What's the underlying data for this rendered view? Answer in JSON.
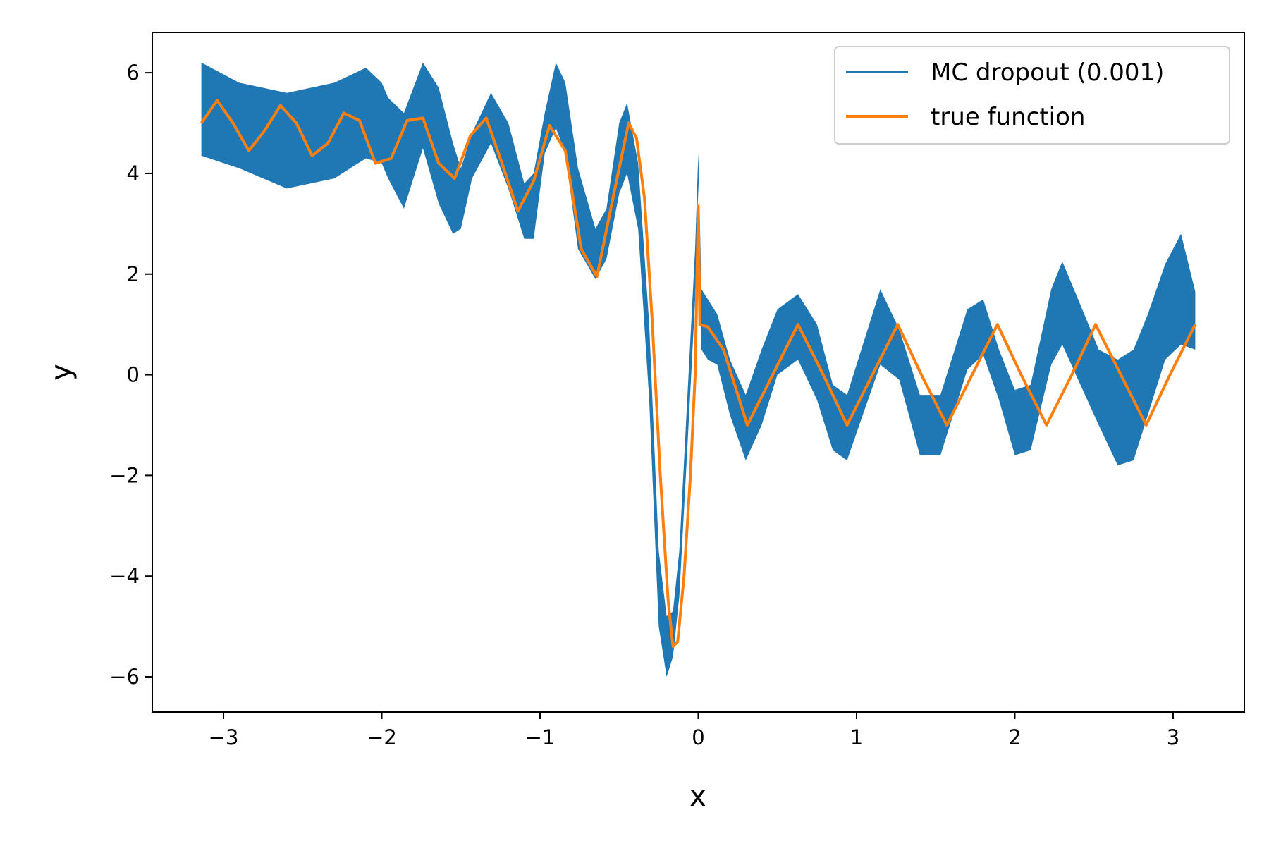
{
  "chart_data": {
    "type": "line",
    "title": "",
    "xlabel": "x",
    "ylabel": "y",
    "xlim": [
      -3.45,
      3.45
    ],
    "ylim": [
      -6.7,
      6.8
    ],
    "xticks": [
      -3,
      -2,
      -1,
      0,
      1,
      2,
      3
    ],
    "xtick_labels": [
      "−3",
      "−2",
      "−1",
      "0",
      "1",
      "2",
      "3"
    ],
    "yticks": [
      -6,
      -4,
      -2,
      0,
      2,
      4,
      6
    ],
    "ytick_labels": [
      "−6",
      "−4",
      "−2",
      "0",
      "2",
      "4",
      "6"
    ],
    "grid": false,
    "legend": {
      "position": "top-right",
      "entries": [
        {
          "label": "MC dropout (0.001)",
          "color": "#1f77b4"
        },
        {
          "label": "true function",
          "color": "#ff7f0e"
        }
      ]
    },
    "series": [
      {
        "name": "MC dropout (0.001)",
        "kind": "band",
        "color": "#1f77b4",
        "x": [
          -3.14,
          -2.9,
          -2.6,
          -2.3,
          -2.1,
          -2.0,
          -1.96,
          -1.86,
          -1.74,
          -1.64,
          -1.55,
          -1.5,
          -1.43,
          -1.31,
          -1.2,
          -1.1,
          -1.04,
          -0.97,
          -0.9,
          -0.84,
          -0.76,
          -0.65,
          -0.58,
          -0.5,
          -0.45,
          -0.38,
          -0.31,
          -0.25,
          -0.2,
          -0.16,
          -0.12,
          -0.07,
          -0.02,
          0.0,
          0.02,
          0.06,
          0.12,
          0.2,
          0.3,
          0.4,
          0.5,
          0.63,
          0.75,
          0.85,
          0.94,
          1.05,
          1.15,
          1.27,
          1.4,
          1.53,
          1.6,
          1.7,
          1.8,
          1.9,
          2.0,
          2.1,
          2.23,
          2.3,
          2.4,
          2.53,
          2.65,
          2.75,
          2.84,
          2.95,
          3.05,
          3.14
        ],
        "upper": [
          6.2,
          5.8,
          5.6,
          5.8,
          6.1,
          5.8,
          5.5,
          5.2,
          6.2,
          5.7,
          4.6,
          4.1,
          4.8,
          5.6,
          5.0,
          3.8,
          4.0,
          5.2,
          6.2,
          5.8,
          4.1,
          2.9,
          3.3,
          5.0,
          5.4,
          4.2,
          1.0,
          -3.5,
          -4.8,
          -4.7,
          -3.5,
          -0.5,
          2.5,
          4.4,
          1.7,
          1.5,
          1.2,
          0.3,
          -0.4,
          0.5,
          1.3,
          1.6,
          1.0,
          -0.2,
          -0.4,
          0.7,
          1.7,
          0.9,
          -0.4,
          -0.4,
          0.3,
          1.3,
          1.5,
          0.5,
          -0.3,
          -0.2,
          1.7,
          2.25,
          1.5,
          0.5,
          0.3,
          0.5,
          1.2,
          2.2,
          2.8,
          1.65
        ],
        "lower": [
          4.35,
          4.1,
          3.7,
          3.9,
          4.3,
          4.2,
          3.9,
          3.3,
          4.5,
          3.4,
          2.8,
          2.9,
          3.9,
          4.6,
          3.7,
          2.7,
          2.7,
          4.4,
          4.9,
          4.4,
          2.5,
          1.9,
          2.3,
          3.6,
          4.0,
          2.9,
          -0.5,
          -5.0,
          -6.0,
          -5.6,
          -4.4,
          -1.5,
          1.5,
          3.8,
          0.5,
          0.3,
          0.2,
          -0.8,
          -1.7,
          -1.0,
          0.0,
          0.3,
          -0.5,
          -1.5,
          -1.7,
          -0.7,
          0.2,
          -0.1,
          -1.6,
          -1.6,
          -0.9,
          0.1,
          0.4,
          -0.5,
          -1.6,
          -1.5,
          0.2,
          0.6,
          -0.1,
          -1.0,
          -1.8,
          -1.7,
          -0.8,
          0.3,
          0.6,
          0.5
        ]
      },
      {
        "name": "true function",
        "kind": "line",
        "color": "#ff7f0e",
        "x": [
          -3.14,
          -3.04,
          -2.94,
          -2.84,
          -2.74,
          -2.64,
          -2.54,
          -2.44,
          -2.34,
          -2.24,
          -2.14,
          -2.04,
          -1.94,
          -1.84,
          -1.74,
          -1.64,
          -1.54,
          -1.44,
          -1.34,
          -1.24,
          -1.14,
          -1.04,
          -0.94,
          -0.84,
          -0.74,
          -0.64,
          -0.54,
          -0.44,
          -0.39,
          -0.34,
          -0.29,
          -0.24,
          -0.19,
          -0.16,
          -0.13,
          -0.09,
          -0.05,
          -0.02,
          0.0,
          0.01,
          0.06,
          0.16,
          0.31,
          0.47,
          0.63,
          0.79,
          0.94,
          1.1,
          1.26,
          1.41,
          1.57,
          1.73,
          1.89,
          2.04,
          2.2,
          2.36,
          2.51,
          2.67,
          2.83,
          2.98,
          3.14
        ],
        "y": [
          5.0,
          5.45,
          5.0,
          4.45,
          4.85,
          5.35,
          5.0,
          4.35,
          4.6,
          5.2,
          5.05,
          4.2,
          4.3,
          5.05,
          5.1,
          4.2,
          3.9,
          4.75,
          5.1,
          4.2,
          3.25,
          3.85,
          4.95,
          4.45,
          2.5,
          1.95,
          3.5,
          5.0,
          4.7,
          3.5,
          1.0,
          -2.0,
          -4.5,
          -5.4,
          -5.3,
          -4.0,
          -2.0,
          0.0,
          3.35,
          1.0,
          0.95,
          0.5,
          -1.0,
          0.0,
          1.0,
          0.0,
          -1.0,
          0.0,
          1.0,
          0.0,
          -1.0,
          0.0,
          1.0,
          0.0,
          -1.0,
          0.0,
          1.0,
          0.0,
          -1.0,
          0.0,
          1.0
        ]
      }
    ]
  }
}
